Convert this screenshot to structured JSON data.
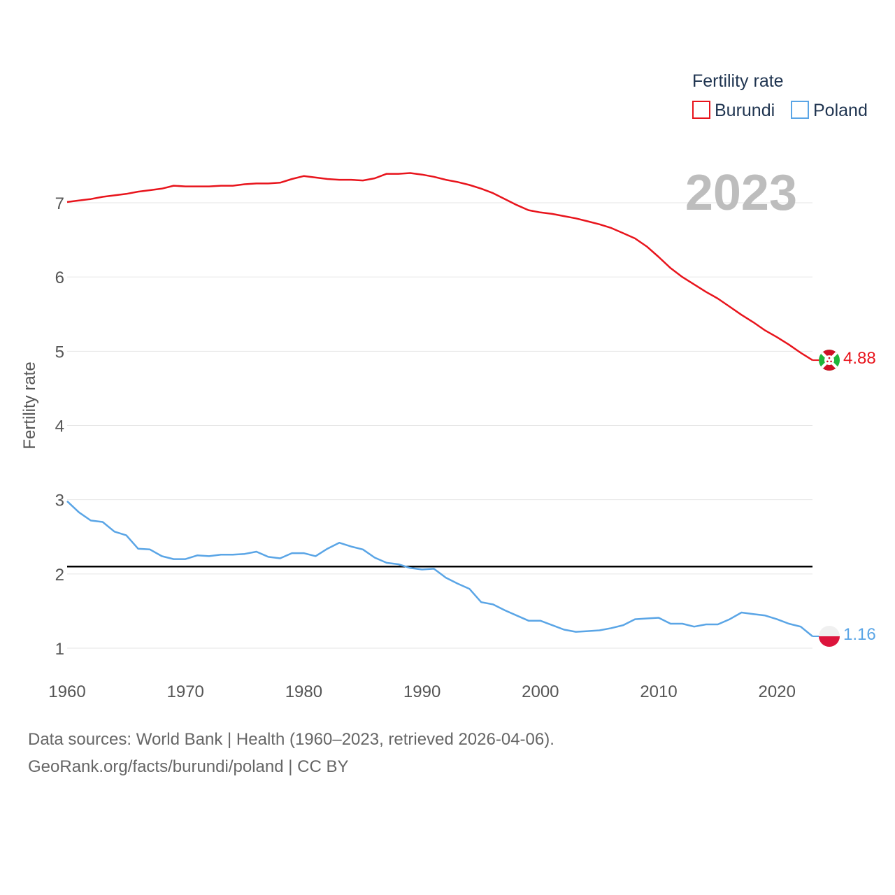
{
  "chart_data": {
    "type": "line",
    "title": "",
    "xlabel": "",
    "ylabel": "Fertility rate",
    "xlim": [
      1960,
      2023
    ],
    "ylim": [
      0.6,
      7.7
    ],
    "x_ticks": [
      1960,
      1970,
      1980,
      1990,
      2000,
      2010,
      2020
    ],
    "y_ticks": [
      1,
      2,
      3,
      4,
      5,
      6,
      7
    ],
    "reference_line": 2.1,
    "year_badge": "2023",
    "legend": {
      "title": "Fertility rate",
      "position": "top-right"
    },
    "x": [
      1960,
      1961,
      1962,
      1963,
      1964,
      1965,
      1966,
      1967,
      1968,
      1969,
      1970,
      1971,
      1972,
      1973,
      1974,
      1975,
      1976,
      1977,
      1978,
      1979,
      1980,
      1981,
      1982,
      1983,
      1984,
      1985,
      1986,
      1987,
      1988,
      1989,
      1990,
      1991,
      1992,
      1993,
      1994,
      1995,
      1996,
      1997,
      1998,
      1999,
      2000,
      2001,
      2002,
      2003,
      2004,
      2005,
      2006,
      2007,
      2008,
      2009,
      2010,
      2011,
      2012,
      2013,
      2014,
      2015,
      2016,
      2017,
      2018,
      2019,
      2020,
      2021,
      2022,
      2023
    ],
    "series": [
      {
        "name": "Burundi",
        "color": "#e8141c",
        "flag": "burundi-flag",
        "end_label": "4.88",
        "values": [
          7.01,
          7.03,
          7.05,
          7.08,
          7.1,
          7.12,
          7.15,
          7.17,
          7.19,
          7.23,
          7.22,
          7.22,
          7.22,
          7.23,
          7.23,
          7.25,
          7.26,
          7.26,
          7.27,
          7.32,
          7.36,
          7.34,
          7.32,
          7.31,
          7.31,
          7.3,
          7.33,
          7.39,
          7.39,
          7.4,
          7.38,
          7.35,
          7.31,
          7.28,
          7.24,
          7.19,
          7.13,
          7.05,
          6.97,
          6.9,
          6.87,
          6.85,
          6.82,
          6.79,
          6.75,
          6.71,
          6.66,
          6.59,
          6.52,
          6.41,
          6.27,
          6.12,
          6.0,
          5.9,
          5.8,
          5.71,
          5.6,
          5.49,
          5.39,
          5.28,
          5.19,
          5.09,
          4.98,
          4.88
        ]
      },
      {
        "name": "Poland",
        "color": "#5aa5e6",
        "flag": "poland-flag",
        "end_label": "1.16",
        "values": [
          2.98,
          2.83,
          2.72,
          2.7,
          2.57,
          2.52,
          2.34,
          2.33,
          2.24,
          2.2,
          2.2,
          2.25,
          2.24,
          2.26,
          2.26,
          2.27,
          2.3,
          2.23,
          2.21,
          2.28,
          2.28,
          2.24,
          2.34,
          2.42,
          2.37,
          2.33,
          2.22,
          2.15,
          2.13,
          2.08,
          2.06,
          2.07,
          1.95,
          1.87,
          1.8,
          1.62,
          1.59,
          1.51,
          1.44,
          1.37,
          1.37,
          1.31,
          1.25,
          1.22,
          1.23,
          1.24,
          1.27,
          1.31,
          1.39,
          1.4,
          1.41,
          1.33,
          1.33,
          1.29,
          1.32,
          1.32,
          1.39,
          1.48,
          1.46,
          1.44,
          1.39,
          1.33,
          1.29,
          1.16
        ]
      }
    ]
  },
  "footer": {
    "line1": "Data sources: World Bank | Health (1960–2023, retrieved 2026-04-06).",
    "line2": "GeoRank.org/facts/burundi/poland | CC BY"
  }
}
